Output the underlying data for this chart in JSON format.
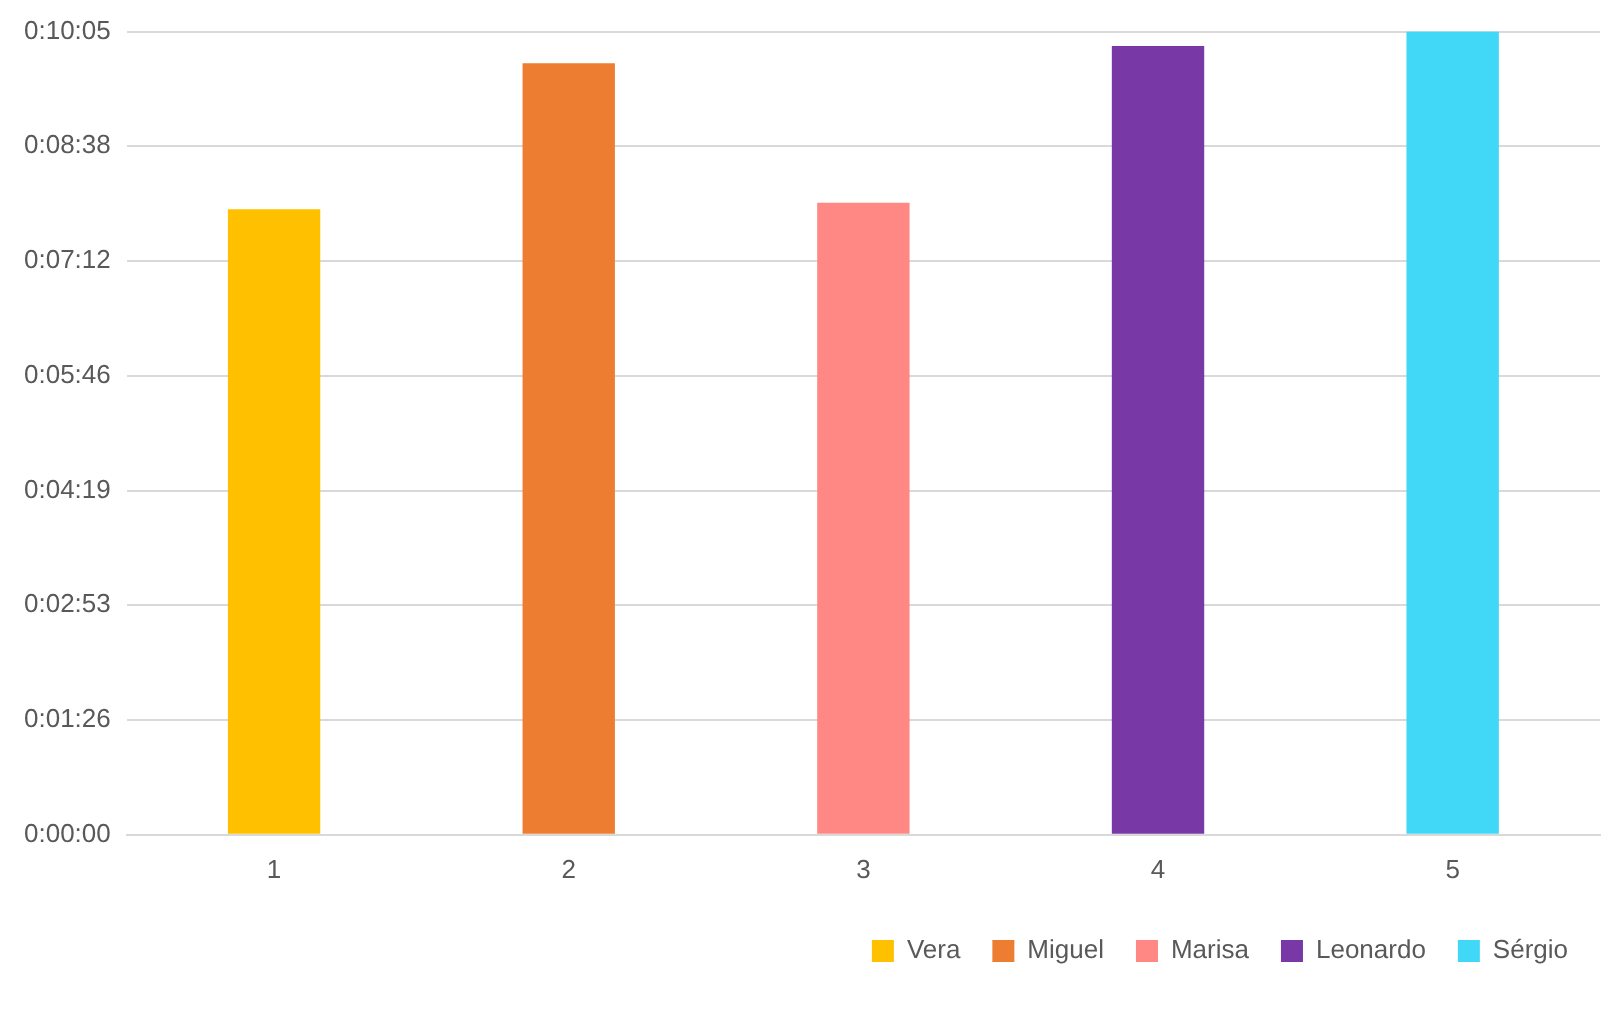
{
  "chart_data": {
    "type": "bar",
    "categories": [
      "1",
      "2",
      "3",
      "4",
      "5"
    ],
    "series": [
      {
        "name": "Vera",
        "color": "#ffc000",
        "values": [
          471,
          null,
          null,
          null,
          null
        ]
      },
      {
        "name": "Miguel",
        "color": "#ed7d31",
        "values": [
          null,
          581,
          null,
          null,
          null
        ]
      },
      {
        "name": "Marisa",
        "color": "#ff8784",
        "values": [
          null,
          null,
          476,
          null,
          null
        ]
      },
      {
        "name": "Leonardo",
        "color": "#7838a6",
        "values": [
          null,
          null,
          null,
          594,
          null
        ]
      },
      {
        "name": "Sérgio",
        "color": "#41d7f7",
        "values": [
          null,
          null,
          null,
          null,
          604.8
        ]
      }
    ],
    "ylim": [
      0,
      604.8
    ],
    "yticks": [
      {
        "value": 0,
        "label": "0:00:00"
      },
      {
        "value": 86.4,
        "label": "0:01:26"
      },
      {
        "value": 172.8,
        "label": "0:02:53"
      },
      {
        "value": 259.2,
        "label": "0:04:19"
      },
      {
        "value": 345.6,
        "label": "0:05:46"
      },
      {
        "value": 432,
        "label": "0:07:12"
      },
      {
        "value": 518.4,
        "label": "0:08:38"
      },
      {
        "value": 604.8,
        "label": "0:10:05"
      }
    ],
    "grid": "y",
    "legend": "bottom"
  }
}
